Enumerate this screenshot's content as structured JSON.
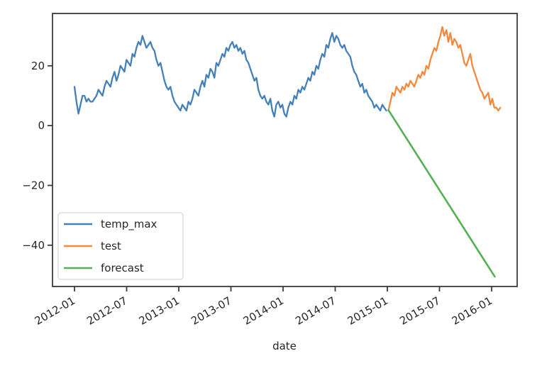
{
  "chart_data": {
    "type": "line",
    "title": "",
    "xlabel": "date",
    "ylabel": "",
    "grid": false,
    "x_axis": {
      "range": [
        2011.789,
        2016.245
      ],
      "ticks": [
        2012.0,
        2012.5,
        2013.0,
        2013.5,
        2014.0,
        2014.5,
        2015.0,
        2015.5,
        2016.0
      ],
      "tick_labels": [
        "2012-01",
        "2012-07",
        "2013-01",
        "2013-07",
        "2014-01",
        "2014-07",
        "2015-01",
        "2015-07",
        "2016-01"
      ],
      "tick_label_rotation_deg": 30
    },
    "y_axis": {
      "range": [
        -53.8,
        37.5
      ],
      "ticks": [
        20,
        0,
        -20,
        -40
      ],
      "tick_labels": [
        "20",
        "0",
        "−20",
        "−40"
      ]
    },
    "legend": {
      "position": "lower-left",
      "entries": [
        "temp_max",
        "test",
        "forecast"
      ]
    },
    "series": [
      {
        "name": "temp_max",
        "color": "#4580b6",
        "line_width": 2.3,
        "x_start": 2012.0,
        "x_step_years": 0.019165,
        "values": [
          13,
          8,
          4,
          7,
          10,
          10,
          8,
          9,
          8,
          8,
          9,
          10,
          12,
          11,
          10,
          13,
          15,
          14,
          13,
          16,
          18,
          15,
          17,
          20,
          19,
          18,
          22,
          21,
          20,
          24,
          23,
          26,
          28,
          27,
          30,
          28,
          26,
          27,
          28,
          26,
          25,
          22,
          20,
          21,
          18,
          15,
          13,
          12,
          13,
          10,
          8,
          7,
          6,
          5,
          7,
          6,
          5,
          8,
          7,
          9,
          12,
          11,
          10,
          13,
          15,
          13,
          17,
          16,
          19,
          18,
          16,
          21,
          20,
          22,
          24,
          23,
          26,
          25,
          27,
          28,
          26,
          27,
          25,
          26,
          24,
          25,
          22,
          21,
          19,
          17,
          15,
          16,
          12,
          10,
          9,
          10,
          8,
          7,
          9,
          5,
          3,
          7,
          8,
          6,
          7,
          4,
          3,
          6,
          8,
          7,
          10,
          9,
          12,
          11,
          13,
          12,
          14,
          16,
          15,
          18,
          17,
          20,
          19,
          22,
          24,
          23,
          27,
          26,
          29,
          31,
          28,
          30,
          29,
          27,
          26,
          27,
          25,
          24,
          23,
          20,
          18,
          17,
          15,
          13,
          14,
          11,
          12,
          10,
          9,
          8,
          6,
          7,
          6,
          5,
          7,
          6,
          5
        ]
      },
      {
        "name": "test",
        "color": "#f2893e",
        "line_width": 2.3,
        "x_start": 2015.01,
        "x_step_years": 0.019165,
        "values": [
          5,
          8,
          11,
          10,
          13,
          12,
          11,
          13,
          12,
          14,
          13,
          15,
          14,
          13,
          15,
          17,
          16,
          18,
          17,
          20,
          19,
          22,
          24,
          26,
          25,
          28,
          30,
          33,
          30,
          32,
          28,
          31,
          27,
          29,
          28,
          26,
          27,
          24,
          21,
          20,
          22,
          24,
          20,
          18,
          16,
          14,
          12,
          11,
          9,
          10,
          11,
          7,
          9,
          6,
          6,
          5,
          6
        ]
      },
      {
        "name": "forecast",
        "color": "#55b054",
        "line_width": 2.6,
        "x": [
          2015.01,
          2016.03
        ],
        "values": [
          5.2,
          -50.5
        ]
      }
    ]
  },
  "axis_style": {
    "spine_color": "#3b3b3b",
    "tick_color": "#3b3b3b",
    "label_color": "#262626",
    "legend_border_color": "#cccccc",
    "background": "#ffffff"
  }
}
